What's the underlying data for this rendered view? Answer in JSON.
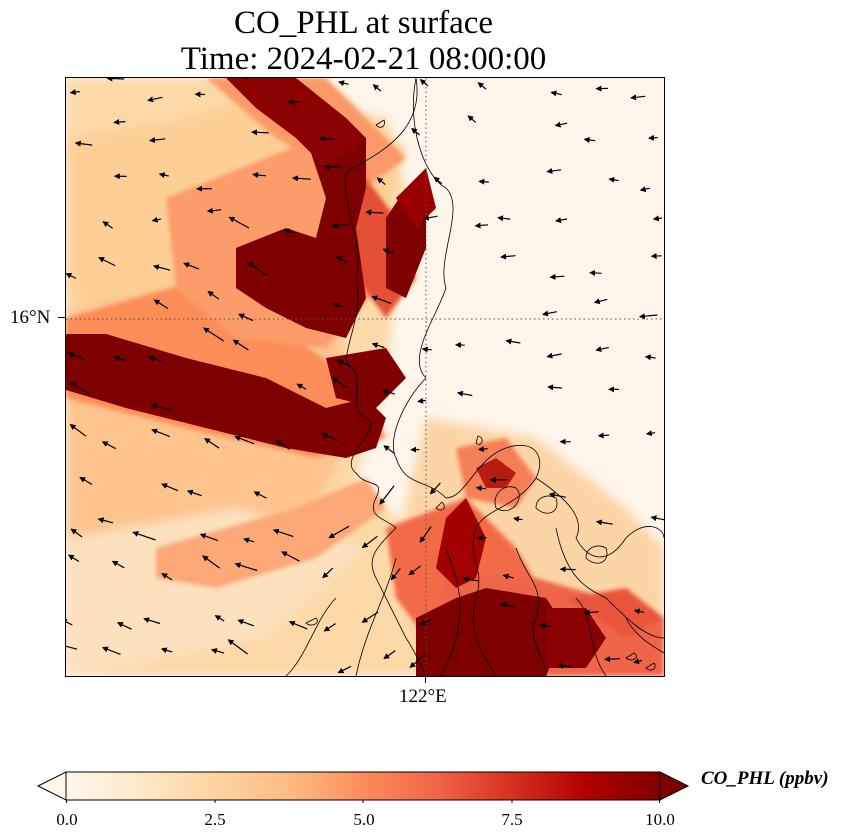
{
  "title": {
    "line1": "CO_PHL at surface",
    "line2": "Time: 2024-02-21 08:00:00"
  },
  "map": {
    "gridline_lat_label": "16°N",
    "gridline_lon_label": "122°E",
    "background_color": "#fff5eb",
    "field": "CO_PHL",
    "plumes": [
      {
        "name": "western band",
        "value": 10.0
      },
      {
        "name": "northern inland ridge",
        "value": 10.0
      },
      {
        "name": "southern lowland",
        "value": 10.0
      },
      {
        "name": "eastern peninsula",
        "value": 7.0
      }
    ],
    "wind_vectors": "black quiver arrows, predominantly from the east"
  },
  "colorbar": {
    "label": "CO_PHL (ppbv)",
    "ticks": [
      "0.0",
      "2.5",
      "5.0",
      "7.5",
      "10.0"
    ],
    "range": [
      0.0,
      10.0
    ],
    "colormap": "OrRd",
    "extend": "both",
    "colors": [
      "#fff7ec",
      "#fee8c8",
      "#fdd49e",
      "#fdbb84",
      "#fc8d59",
      "#ef6548",
      "#d7301f",
      "#b30000",
      "#7f0000"
    ]
  }
}
